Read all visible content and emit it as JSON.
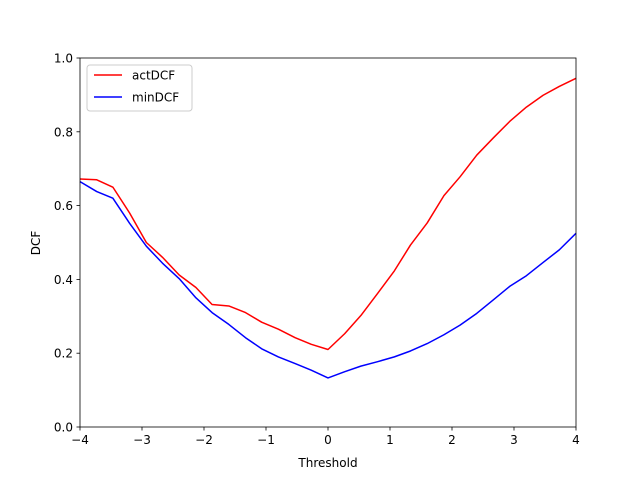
{
  "chart_data": {
    "type": "line",
    "xlabel": "Threshold",
    "ylabel": "DCF",
    "xlim": [
      -4,
      4
    ],
    "ylim": [
      0,
      1.0
    ],
    "x_ticks": [
      "−4",
      "−3",
      "−2",
      "−1",
      "0",
      "1",
      "2",
      "3",
      "4"
    ],
    "y_ticks": [
      "0.0",
      "0.2",
      "0.4",
      "0.6",
      "0.8",
      "1.0"
    ],
    "grid": false,
    "legend_position": "top-left",
    "series": [
      {
        "name": "actDCF",
        "color": "#ff0000",
        "x": [
          -4.0,
          -3.73,
          -3.47,
          -3.2,
          -2.93,
          -2.67,
          -2.4,
          -2.13,
          -1.87,
          -1.6,
          -1.33,
          -1.07,
          -0.8,
          -0.53,
          -0.27,
          0.0,
          0.27,
          0.53,
          0.8,
          1.07,
          1.33,
          1.6,
          1.87,
          2.13,
          2.4,
          2.67,
          2.93,
          3.2,
          3.47,
          3.73,
          4.0
        ],
        "y": [
          0.672,
          0.67,
          0.65,
          0.58,
          0.5,
          0.46,
          0.412,
          0.378,
          0.332,
          0.328,
          0.31,
          0.284,
          0.265,
          0.242,
          0.224,
          0.21,
          0.253,
          0.302,
          0.362,
          0.423,
          0.493,
          0.553,
          0.627,
          0.678,
          0.737,
          0.784,
          0.828,
          0.867,
          0.899,
          0.923,
          0.945
        ]
      },
      {
        "name": "minDCF",
        "color": "#0000ff",
        "x": [
          -4.0,
          -3.73,
          -3.47,
          -3.2,
          -2.93,
          -2.67,
          -2.4,
          -2.13,
          -1.87,
          -1.6,
          -1.33,
          -1.07,
          -0.8,
          -0.53,
          -0.27,
          0.0,
          0.27,
          0.53,
          0.8,
          1.07,
          1.33,
          1.6,
          1.87,
          2.13,
          2.4,
          2.67,
          2.93,
          3.2,
          3.47,
          3.73,
          4.0
        ],
        "y": [
          0.665,
          0.638,
          0.62,
          0.552,
          0.49,
          0.444,
          0.402,
          0.35,
          0.31,
          0.278,
          0.242,
          0.212,
          0.19,
          0.172,
          0.154,
          0.133,
          0.15,
          0.165,
          0.177,
          0.19,
          0.206,
          0.226,
          0.25,
          0.276,
          0.308,
          0.345,
          0.381,
          0.41,
          0.446,
          0.48,
          0.525
        ]
      }
    ]
  }
}
